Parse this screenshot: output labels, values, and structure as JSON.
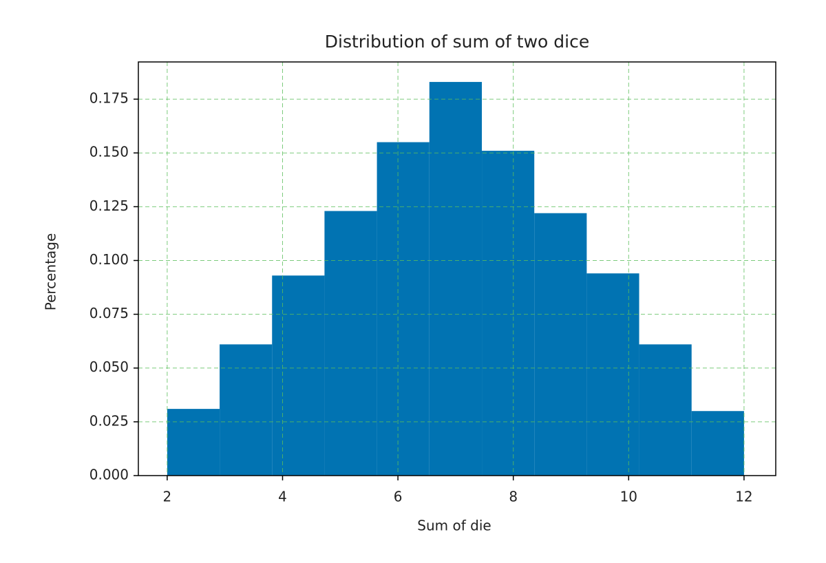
{
  "chart_data": {
    "type": "histogram",
    "title": "Distribution of sum of two dice",
    "xlabel": "Sum of die",
    "ylabel": "Percentage",
    "bins": [
      2,
      2.909,
      3.818,
      4.727,
      5.636,
      6.545,
      7.455,
      8.364,
      9.273,
      10.182,
      11.091,
      12
    ],
    "values": [
      0.031,
      0.061,
      0.093,
      0.123,
      0.155,
      0.183,
      0.151,
      0.122,
      0.094,
      0.061,
      0.03
    ],
    "color": "#0173b2",
    "xlim": [
      1.5,
      12.55
    ],
    "ylim": [
      0,
      0.1923
    ],
    "xticks": [
      2,
      4,
      6,
      8,
      10,
      12
    ],
    "yticks": [
      {
        "value": 0,
        "label": "0.000"
      },
      {
        "value": 0.025,
        "label": "0.025"
      },
      {
        "value": 0.05,
        "label": "0.050"
      },
      {
        "value": 0.075,
        "label": "0.075"
      },
      {
        "value": 0.1,
        "label": "0.100"
      },
      {
        "value": 0.125,
        "label": "0.125"
      },
      {
        "value": 0.15,
        "label": "0.150"
      },
      {
        "value": 0.175,
        "label": "0.175"
      }
    ],
    "grid": true,
    "grid_color": "#5cbf5c"
  }
}
